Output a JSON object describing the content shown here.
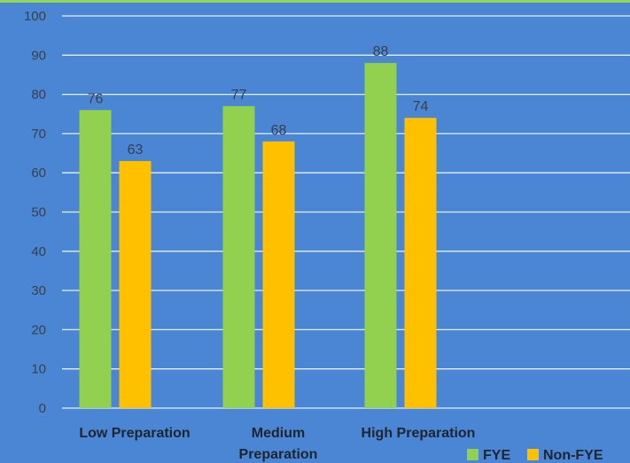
{
  "chart_data": {
    "type": "bar",
    "title": "",
    "xlabel": "",
    "ylabel": "",
    "categories": [
      "Low Preparation",
      "Medium Preparation",
      "High Preparation"
    ],
    "category_lines": [
      [
        "Low Preparation"
      ],
      [
        "Medium",
        "Preparation"
      ],
      [
        "High Preparation"
      ]
    ],
    "series": [
      {
        "name": "FYE",
        "values": [
          76,
          77,
          88
        ],
        "color": "#92d050"
      },
      {
        "name": "Non-FYE",
        "values": [
          63,
          68,
          74
        ],
        "color": "#ffc000"
      }
    ],
    "ylim": [
      0,
      100
    ],
    "yticks": [
      0,
      10,
      20,
      30,
      40,
      50,
      60,
      70,
      80,
      90,
      100
    ],
    "grid": true,
    "legend_position": "bottom-right",
    "background_color": "#4a86d4",
    "gridline_color": "#e8eef8"
  }
}
